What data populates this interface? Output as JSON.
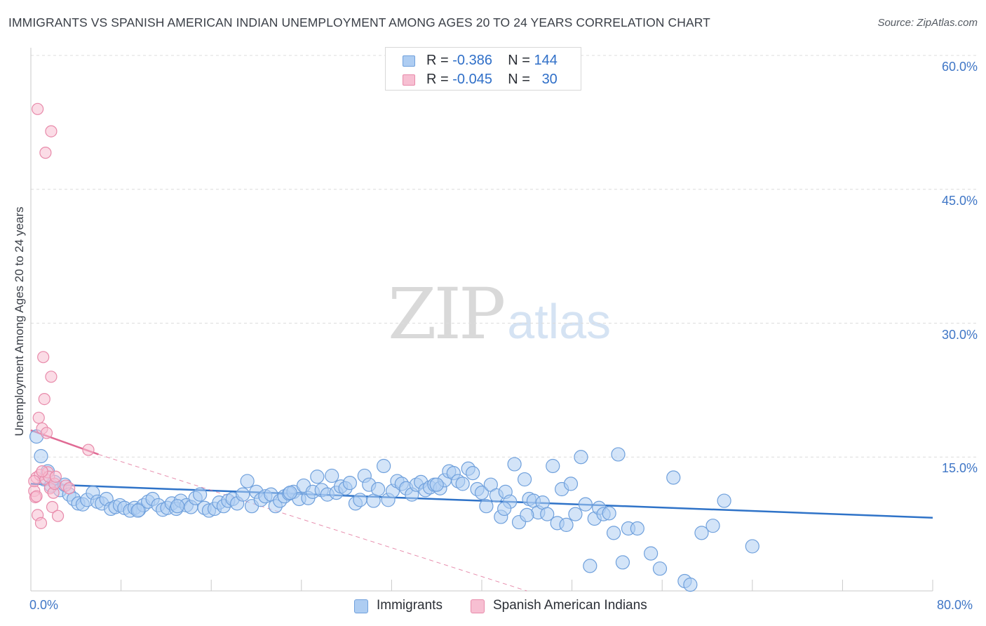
{
  "title": "IMMIGRANTS VS SPANISH AMERICAN INDIAN UNEMPLOYMENT AMONG AGES 20 TO 24 YEARS CORRELATION CHART",
  "source": "Source: ZipAtlas.com",
  "watermark": {
    "zip": "ZIP",
    "atlas": "atlas"
  },
  "legend": {
    "rows": [
      {
        "r_label": "R =",
        "r_value": "-0.386",
        "n_label": "N =",
        "n_value": "144"
      },
      {
        "r_label": "R =",
        "r_value": "-0.045",
        "n_label": "N =",
        "n_value": "30"
      }
    ]
  },
  "colors": {
    "immigrants_fill": "#aecdf2",
    "immigrants_stroke": "#6fa0dc",
    "immigrants_line": "#2f73c8",
    "spanish_fill": "#f7bfd2",
    "spanish_stroke": "#e88aaa",
    "spanish_line": "#e06a94",
    "grid": "#dcdcdc",
    "tick_text": "#3f76c6"
  },
  "chart_data": {
    "type": "scatter",
    "title": "IMMIGRANTS VS SPANISH AMERICAN INDIAN UNEMPLOYMENT AMONG AGES 20 TO 24 YEARS CORRELATION CHART",
    "xlabel": "",
    "ylabel": "Unemployment Among Ages 20 to 24 years",
    "xlim": [
      0,
      80
    ],
    "ylim": [
      0,
      60
    ],
    "x_tick_labels": [
      "0.0%",
      "80.0%"
    ],
    "y_ticks": [
      15,
      30,
      45,
      60
    ],
    "y_tick_labels": [
      "15.0%",
      "30.0%",
      "45.0%",
      "60.0%"
    ],
    "grid": "horizontal dashed",
    "legend_position": "bottom-center",
    "series": [
      {
        "name": "Immigrants",
        "R": -0.386,
        "N": 144,
        "trend": {
          "x": [
            0,
            80
          ],
          "y": [
            12.0,
            8.2
          ]
        },
        "points": [
          [
            0.5,
            17.3
          ],
          [
            0.9,
            15.1
          ],
          [
            1.2,
            12.5
          ],
          [
            1.5,
            13.4
          ],
          [
            1.8,
            11.8
          ],
          [
            2.1,
            12.2
          ],
          [
            2.6,
            11.3
          ],
          [
            3.0,
            11.9
          ],
          [
            3.4,
            10.8
          ],
          [
            3.8,
            10.3
          ],
          [
            4.2,
            9.8
          ],
          [
            4.6,
            9.7
          ],
          [
            5.0,
            10.2
          ],
          [
            5.5,
            11.0
          ],
          [
            5.9,
            10.0
          ],
          [
            6.3,
            9.8
          ],
          [
            6.7,
            10.3
          ],
          [
            7.1,
            9.2
          ],
          [
            7.5,
            9.4
          ],
          [
            7.9,
            9.6
          ],
          [
            8.3,
            9.3
          ],
          [
            8.8,
            9.0
          ],
          [
            9.2,
            9.3
          ],
          [
            9.6,
            9.1
          ],
          [
            10.0,
            9.6
          ],
          [
            10.4,
            10.0
          ],
          [
            10.8,
            10.3
          ],
          [
            11.3,
            9.6
          ],
          [
            11.7,
            9.1
          ],
          [
            12.1,
            9.3
          ],
          [
            12.5,
            9.8
          ],
          [
            12.9,
            9.2
          ],
          [
            13.3,
            10.1
          ],
          [
            13.8,
            9.6
          ],
          [
            14.2,
            9.4
          ],
          [
            14.6,
            10.4
          ],
          [
            15.0,
            10.8
          ],
          [
            15.4,
            9.3
          ],
          [
            15.8,
            9.0
          ],
          [
            16.3,
            9.2
          ],
          [
            16.7,
            9.9
          ],
          [
            17.1,
            9.5
          ],
          [
            17.5,
            10.1
          ],
          [
            17.9,
            10.3
          ],
          [
            18.3,
            9.8
          ],
          [
            18.8,
            10.8
          ],
          [
            19.2,
            12.3
          ],
          [
            19.6,
            9.5
          ],
          [
            20.0,
            11.1
          ],
          [
            20.4,
            10.2
          ],
          [
            20.8,
            10.6
          ],
          [
            21.3,
            10.8
          ],
          [
            21.7,
            9.5
          ],
          [
            22.1,
            10.1
          ],
          [
            22.5,
            10.6
          ],
          [
            22.9,
            10.9
          ],
          [
            23.3,
            11.1
          ],
          [
            23.8,
            10.3
          ],
          [
            24.2,
            11.8
          ],
          [
            24.6,
            10.4
          ],
          [
            25.0,
            11.1
          ],
          [
            25.4,
            12.8
          ],
          [
            25.8,
            11.3
          ],
          [
            26.3,
            10.8
          ],
          [
            26.7,
            12.9
          ],
          [
            27.1,
            11.0
          ],
          [
            27.5,
            11.7
          ],
          [
            27.9,
            11.5
          ],
          [
            28.3,
            12.1
          ],
          [
            28.8,
            9.8
          ],
          [
            29.2,
            10.2
          ],
          [
            29.6,
            12.9
          ],
          [
            30.0,
            11.9
          ],
          [
            30.4,
            10.1
          ],
          [
            30.8,
            11.4
          ],
          [
            31.3,
            14.0
          ],
          [
            31.7,
            10.2
          ],
          [
            32.1,
            11.2
          ],
          [
            32.5,
            12.3
          ],
          [
            32.9,
            12.0
          ],
          [
            33.3,
            11.5
          ],
          [
            33.8,
            10.8
          ],
          [
            34.2,
            11.9
          ],
          [
            34.6,
            12.2
          ],
          [
            35.0,
            11.3
          ],
          [
            35.4,
            11.6
          ],
          [
            35.8,
            11.9
          ],
          [
            36.3,
            11.5
          ],
          [
            36.7,
            12.4
          ],
          [
            37.1,
            13.4
          ],
          [
            37.5,
            13.2
          ],
          [
            37.9,
            12.3
          ],
          [
            38.3,
            12.0
          ],
          [
            38.8,
            13.7
          ],
          [
            39.2,
            13.2
          ],
          [
            39.6,
            11.4
          ],
          [
            40.0,
            11.0
          ],
          [
            40.4,
            9.5
          ],
          [
            40.8,
            11.9
          ],
          [
            41.3,
            10.7
          ],
          [
            41.7,
            8.3
          ],
          [
            42.1,
            11.1
          ],
          [
            42.5,
            10.0
          ],
          [
            42.9,
            14.2
          ],
          [
            43.3,
            7.7
          ],
          [
            43.8,
            12.5
          ],
          [
            44.2,
            10.3
          ],
          [
            44.6,
            10.1
          ],
          [
            45.0,
            8.8
          ],
          [
            45.4,
            9.9
          ],
          [
            45.8,
            8.6
          ],
          [
            46.3,
            14.0
          ],
          [
            46.7,
            7.6
          ],
          [
            47.1,
            11.4
          ],
          [
            47.5,
            7.4
          ],
          [
            47.9,
            12.0
          ],
          [
            48.3,
            8.6
          ],
          [
            48.8,
            15.0
          ],
          [
            49.2,
            9.7
          ],
          [
            49.6,
            2.8
          ],
          [
            50.0,
            8.1
          ],
          [
            50.4,
            9.3
          ],
          [
            50.8,
            8.6
          ],
          [
            51.3,
            8.7
          ],
          [
            51.7,
            6.5
          ],
          [
            52.1,
            15.3
          ],
          [
            52.5,
            3.2
          ],
          [
            53.0,
            7.0
          ],
          [
            53.8,
            7.0
          ],
          [
            55.0,
            4.2
          ],
          [
            55.8,
            2.5
          ],
          [
            57.0,
            12.7
          ],
          [
            58.0,
            1.1
          ],
          [
            58.5,
            0.7
          ],
          [
            59.5,
            6.5
          ],
          [
            60.5,
            7.3
          ],
          [
            61.5,
            10.1
          ],
          [
            64.0,
            5.0
          ],
          [
            42.0,
            9.2
          ],
          [
            9.5,
            9.0
          ],
          [
            13.0,
            9.5
          ],
          [
            23.0,
            11.0
          ],
          [
            36.0,
            11.9
          ],
          [
            44.0,
            8.5
          ]
        ]
      },
      {
        "name": "Spanish American Indians",
        "R": -0.045,
        "N": 30,
        "trend": {
          "x": [
            0,
            6
          ],
          "y": [
            18.0,
            15.3
          ]
        },
        "trend_extended": {
          "x": [
            6,
            44
          ],
          "y": [
            15.3,
            0
          ]
        },
        "points": [
          [
            0.3,
            11.2
          ],
          [
            0.4,
            10.5
          ],
          [
            0.5,
            12.7
          ],
          [
            0.6,
            8.5
          ],
          [
            0.7,
            19.4
          ],
          [
            0.8,
            13.0
          ],
          [
            0.9,
            7.6
          ],
          [
            1.0,
            18.2
          ],
          [
            1.1,
            26.2
          ],
          [
            1.2,
            21.5
          ],
          [
            1.3,
            12.5
          ],
          [
            1.4,
            17.7
          ],
          [
            1.5,
            13.3
          ],
          [
            1.6,
            12.8
          ],
          [
            1.7,
            11.5
          ],
          [
            1.8,
            24.0
          ],
          [
            1.9,
            9.4
          ],
          [
            2.0,
            11.0
          ],
          [
            2.1,
            12.0
          ],
          [
            2.2,
            12.8
          ],
          [
            2.4,
            8.4
          ],
          [
            3.1,
            11.8
          ],
          [
            3.4,
            11.5
          ],
          [
            5.1,
            15.8
          ],
          [
            0.6,
            54.0
          ],
          [
            1.3,
            49.1
          ],
          [
            1.8,
            51.5
          ],
          [
            0.3,
            12.3
          ],
          [
            0.5,
            10.6
          ],
          [
            1.0,
            13.4
          ]
        ]
      }
    ]
  },
  "x_axis": {
    "min_label": "0.0%",
    "max_label": "80.0%"
  },
  "y_axis": {
    "title": "Unemployment Among Ages 20 to 24 years"
  },
  "bottom_legend": {
    "items": [
      {
        "label": "Immigrants"
      },
      {
        "label": "Spanish American Indians"
      }
    ]
  }
}
